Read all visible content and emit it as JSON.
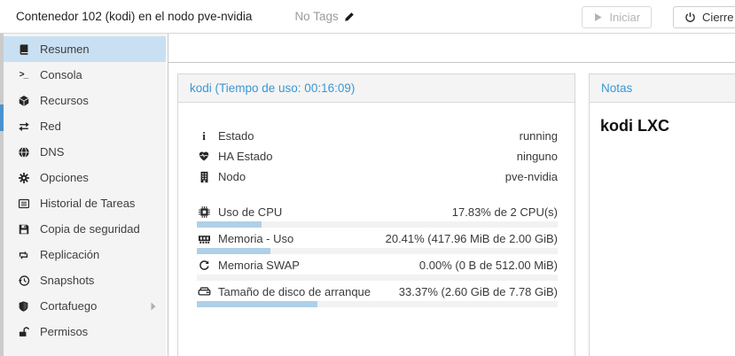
{
  "header": {
    "title": "Contenedor 102 (kodi) en el nodo pve-nvidia",
    "tags_label": "No Tags",
    "start_button": "Iniciar",
    "shutdown_button": "Cierre ordenado"
  },
  "sidebar": {
    "items": [
      {
        "icon": "book-icon",
        "label": "Resumen",
        "active": true
      },
      {
        "icon": "terminal-icon",
        "label": "Consola"
      },
      {
        "icon": "cube-icon",
        "label": "Recursos"
      },
      {
        "icon": "exchange-icon",
        "label": "Red"
      },
      {
        "icon": "globe-icon",
        "label": "DNS"
      },
      {
        "icon": "gear-icon",
        "label": "Opciones"
      },
      {
        "icon": "tasks-icon",
        "label": "Historial de Tareas"
      },
      {
        "icon": "floppy-icon",
        "label": "Copia de seguridad"
      },
      {
        "icon": "retweet-icon",
        "label": "Replicación"
      },
      {
        "icon": "history-icon",
        "label": "Snapshots"
      },
      {
        "icon": "shield-icon",
        "label": "Cortafuego",
        "has_submenu": true
      },
      {
        "icon": "unlock-icon",
        "label": "Permisos"
      }
    ]
  },
  "status_panel": {
    "title": "kodi (Tiempo de uso: 00:16:09)",
    "rows": [
      {
        "icon": "info-icon",
        "label": "Estado",
        "value": "running"
      },
      {
        "icon": "heartbeat-icon",
        "label": "HA Estado",
        "value": "ninguno"
      },
      {
        "icon": "building-icon",
        "label": "Nodo",
        "value": "pve-nvidia"
      }
    ],
    "meters": [
      {
        "icon": "cpu-icon",
        "label": "Uso de CPU",
        "value": "17.83% de 2 CPU(s)",
        "percent": 17.83
      },
      {
        "icon": "memory-icon",
        "label": "Memoria - Uso",
        "value": "20.41% (417.96 MiB de 2.00 GiB)",
        "percent": 20.41
      },
      {
        "icon": "refresh-icon",
        "label": "Memoria SWAP",
        "value": "0.00% (0 B de 512.00 MiB)",
        "percent": 0
      },
      {
        "icon": "disk-icon",
        "label": "Tamaño de disco de arranque",
        "value": "33.37% (2.60 GiB de 7.78 GiB)",
        "percent": 33.37
      }
    ]
  },
  "notes_panel": {
    "title": "Notas",
    "content": "kodi LXC"
  },
  "colors": {
    "accent_blue": "#3a97d4",
    "selection_bg": "#c9e0f3",
    "tree_marker_blue": "#4a92cf",
    "bar_fill": "#aed0e8",
    "bar_track": "#f2f2f2",
    "sidebar_bg": "#f4f4f4",
    "muted_text": "#9b9b9b"
  }
}
